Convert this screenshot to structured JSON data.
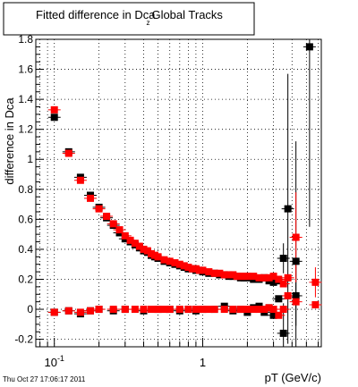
{
  "title_prefix": "Fitted difference in Dca",
  "title_subscript": "z",
  "title_suffix": "Global Tracks",
  "timestamp": "Thu Oct 27 17:06:17 2011",
  "chart_data": {
    "type": "scatter",
    "title": "Fitted difference in Dca z Global Tracks",
    "xlabel": "pT (GeV/c)",
    "ylabel": "difference in Dca",
    "xscale": "log",
    "xlim": [
      0.075,
      6.3
    ],
    "ylim": [
      -0.25,
      1.8
    ],
    "grid": true,
    "y_ticks": [
      -0.2,
      0,
      0.2,
      0.4,
      0.6,
      0.8,
      1,
      1.2,
      1.4,
      1.6,
      1.8
    ],
    "y_tick_labels": [
      "-0.2",
      "0",
      "0.2",
      "0.4",
      "0.6",
      "0.8",
      "1",
      "1.2",
      "1.4",
      "1.6",
      "1.8"
    ],
    "x_ticks": [
      0.1,
      1
    ],
    "x_tick_labels": [
      "10^-1",
      "1"
    ],
    "series": [
      {
        "color": "#000000",
        "marker": "square",
        "points": [
          {
            "x": 0.1,
            "y": 1.28
          },
          {
            "x": 0.125,
            "y": 1.05
          },
          {
            "x": 0.15,
            "y": 0.88
          },
          {
            "x": 0.175,
            "y": 0.76
          },
          {
            "x": 0.2,
            "y": 0.68
          },
          {
            "x": 0.225,
            "y": 0.61
          },
          {
            "x": 0.25,
            "y": 0.56
          },
          {
            "x": 0.275,
            "y": 0.51
          },
          {
            "x": 0.3,
            "y": 0.47
          },
          {
            "x": 0.325,
            "y": 0.45
          },
          {
            "x": 0.35,
            "y": 0.43
          },
          {
            "x": 0.375,
            "y": 0.41
          },
          {
            "x": 0.4,
            "y": 0.39
          },
          {
            "x": 0.425,
            "y": 0.38
          },
          {
            "x": 0.45,
            "y": 0.36
          },
          {
            "x": 0.475,
            "y": 0.35
          },
          {
            "x": 0.5,
            "y": 0.34
          },
          {
            "x": 0.55,
            "y": 0.32
          },
          {
            "x": 0.6,
            "y": 0.31
          },
          {
            "x": 0.65,
            "y": 0.3
          },
          {
            "x": 0.7,
            "y": 0.29
          },
          {
            "x": 0.75,
            "y": 0.28
          },
          {
            "x": 0.8,
            "y": 0.27
          },
          {
            "x": 0.85,
            "y": 0.27
          },
          {
            "x": 0.9,
            "y": 0.26
          },
          {
            "x": 0.95,
            "y": 0.26
          },
          {
            "x": 1.0,
            "y": 0.25
          },
          {
            "x": 1.1,
            "y": 0.24
          },
          {
            "x": 1.2,
            "y": 0.24
          },
          {
            "x": 1.3,
            "y": 0.23
          },
          {
            "x": 1.4,
            "y": 0.23
          },
          {
            "x": 1.5,
            "y": 0.22
          },
          {
            "x": 1.6,
            "y": 0.22
          },
          {
            "x": 1.7,
            "y": 0.22
          },
          {
            "x": 1.8,
            "y": 0.21
          },
          {
            "x": 1.9,
            "y": 0.21
          },
          {
            "x": 2.0,
            "y": 0.21
          },
          {
            "x": 2.2,
            "y": 0.2
          },
          {
            "x": 2.4,
            "y": 0.2
          },
          {
            "x": 2.6,
            "y": 0.21
          },
          {
            "x": 2.8,
            "y": 0.19
          },
          {
            "x": 3.0,
            "y": 0.18
          },
          {
            "x": 3.25,
            "y": 0.19
          },
          {
            "x": 3.5,
            "y": 0.34,
            "err": 0.1
          },
          {
            "x": 3.75,
            "y": 0.67,
            "err": 0.9
          },
          {
            "x": 4.25,
            "y": 0.32,
            "err": 0.8
          },
          {
            "x": 5.25,
            "y": 1.75,
            "err": 1.2
          },
          {
            "x": 0.1,
            "y": -0.02
          },
          {
            "x": 0.125,
            "y": -0.01
          },
          {
            "x": 0.15,
            "y": -0.03
          },
          {
            "x": 0.175,
            "y": -0.01
          },
          {
            "x": 0.2,
            "y": 0.0
          },
          {
            "x": 0.25,
            "y": -0.01
          },
          {
            "x": 0.3,
            "y": 0.0
          },
          {
            "x": 0.4,
            "y": -0.01
          },
          {
            "x": 0.5,
            "y": 0.0
          },
          {
            "x": 0.6,
            "y": 0.0
          },
          {
            "x": 0.7,
            "y": -0.01
          },
          {
            "x": 0.8,
            "y": 0.0
          },
          {
            "x": 0.9,
            "y": -0.01
          },
          {
            "x": 1.0,
            "y": 0.0
          },
          {
            "x": 1.2,
            "y": 0.0
          },
          {
            "x": 1.4,
            "y": 0.02
          },
          {
            "x": 1.6,
            "y": -0.01
          },
          {
            "x": 1.8,
            "y": 0.0
          },
          {
            "x": 2.0,
            "y": -0.02
          },
          {
            "x": 2.2,
            "y": 0.01
          },
          {
            "x": 2.4,
            "y": 0.02
          },
          {
            "x": 2.6,
            "y": -0.02
          },
          {
            "x": 2.8,
            "y": 0.01
          },
          {
            "x": 3.0,
            "y": -0.04
          },
          {
            "x": 3.25,
            "y": 0.07
          },
          {
            "x": 3.5,
            "y": -0.16,
            "err": 0.2
          },
          {
            "x": 4.25,
            "y": 0.09,
            "err": 0.2
          }
        ]
      },
      {
        "color": "#ff0000",
        "marker": "square",
        "points": [
          {
            "x": 0.1,
            "y": 1.33
          },
          {
            "x": 0.125,
            "y": 1.04
          },
          {
            "x": 0.15,
            "y": 0.86
          },
          {
            "x": 0.175,
            "y": 0.74
          },
          {
            "x": 0.2,
            "y": 0.67
          },
          {
            "x": 0.225,
            "y": 0.62
          },
          {
            "x": 0.25,
            "y": 0.57
          },
          {
            "x": 0.275,
            "y": 0.53
          },
          {
            "x": 0.3,
            "y": 0.49
          },
          {
            "x": 0.325,
            "y": 0.46
          },
          {
            "x": 0.35,
            "y": 0.44
          },
          {
            "x": 0.375,
            "y": 0.42
          },
          {
            "x": 0.4,
            "y": 0.4
          },
          {
            "x": 0.425,
            "y": 0.39
          },
          {
            "x": 0.45,
            "y": 0.37
          },
          {
            "x": 0.475,
            "y": 0.36
          },
          {
            "x": 0.5,
            "y": 0.35
          },
          {
            "x": 0.55,
            "y": 0.33
          },
          {
            "x": 0.6,
            "y": 0.32
          },
          {
            "x": 0.65,
            "y": 0.31
          },
          {
            "x": 0.7,
            "y": 0.3
          },
          {
            "x": 0.75,
            "y": 0.29
          },
          {
            "x": 0.8,
            "y": 0.28
          },
          {
            "x": 0.85,
            "y": 0.27
          },
          {
            "x": 0.9,
            "y": 0.27
          },
          {
            "x": 0.95,
            "y": 0.26
          },
          {
            "x": 1.0,
            "y": 0.26
          },
          {
            "x": 1.1,
            "y": 0.25
          },
          {
            "x": 1.2,
            "y": 0.24
          },
          {
            "x": 1.3,
            "y": 0.24
          },
          {
            "x": 1.4,
            "y": 0.23
          },
          {
            "x": 1.5,
            "y": 0.23
          },
          {
            "x": 1.6,
            "y": 0.23
          },
          {
            "x": 1.7,
            "y": 0.22
          },
          {
            "x": 1.8,
            "y": 0.22
          },
          {
            "x": 1.9,
            "y": 0.22
          },
          {
            "x": 2.0,
            "y": 0.22
          },
          {
            "x": 2.2,
            "y": 0.22
          },
          {
            "x": 2.4,
            "y": 0.21
          },
          {
            "x": 2.6,
            "y": 0.21
          },
          {
            "x": 2.8,
            "y": 0.21
          },
          {
            "x": 3.0,
            "y": 0.22
          },
          {
            "x": 3.25,
            "y": 0.2
          },
          {
            "x": 3.5,
            "y": 0.17
          },
          {
            "x": 3.75,
            "y": 0.21
          },
          {
            "x": 4.25,
            "y": 0.48,
            "err": 0.3
          },
          {
            "x": 5.75,
            "y": 0.18,
            "err": 0.1
          },
          {
            "x": 0.1,
            "y": -0.02
          },
          {
            "x": 0.125,
            "y": -0.01
          },
          {
            "x": 0.15,
            "y": -0.02
          },
          {
            "x": 0.175,
            "y": -0.01
          },
          {
            "x": 0.2,
            "y": 0.0
          },
          {
            "x": 0.25,
            "y": 0.0
          },
          {
            "x": 0.3,
            "y": 0.0
          },
          {
            "x": 0.35,
            "y": 0.0
          },
          {
            "x": 0.4,
            "y": 0.0
          },
          {
            "x": 0.45,
            "y": 0.0
          },
          {
            "x": 0.5,
            "y": 0.0
          },
          {
            "x": 0.55,
            "y": 0.0
          },
          {
            "x": 0.6,
            "y": 0.0
          },
          {
            "x": 0.7,
            "y": 0.0
          },
          {
            "x": 0.8,
            "y": 0.0
          },
          {
            "x": 0.9,
            "y": 0.0
          },
          {
            "x": 1.0,
            "y": 0.0
          },
          {
            "x": 1.1,
            "y": 0.0
          },
          {
            "x": 1.2,
            "y": 0.0
          },
          {
            "x": 1.4,
            "y": 0.0
          },
          {
            "x": 1.6,
            "y": 0.0
          },
          {
            "x": 1.8,
            "y": 0.0
          },
          {
            "x": 2.0,
            "y": 0.0
          },
          {
            "x": 2.2,
            "y": 0.0
          },
          {
            "x": 2.4,
            "y": 0.0
          },
          {
            "x": 2.6,
            "y": 0.0
          },
          {
            "x": 2.8,
            "y": 0.01
          },
          {
            "x": 3.0,
            "y": 0.0
          },
          {
            "x": 3.25,
            "y": -0.04
          },
          {
            "x": 3.5,
            "y": 0.0
          },
          {
            "x": 3.75,
            "y": 0.09
          },
          {
            "x": 4.25,
            "y": 0.05
          },
          {
            "x": 5.75,
            "y": 0.03
          }
        ]
      }
    ]
  }
}
